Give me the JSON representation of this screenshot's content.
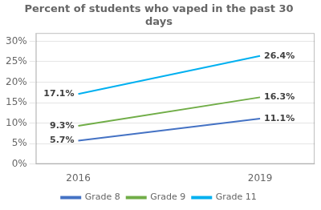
{
  "chart_data": {
    "type": "line",
    "title": "Percent of students who vaped in the past 30\ndays",
    "x": [
      2016,
      2019
    ],
    "series": [
      {
        "name": "Grade 8",
        "color": "#4472C4",
        "values": [
          5.7,
          11.1
        ],
        "value_labels": [
          "5.7%",
          "11.1%"
        ]
      },
      {
        "name": "Grade 9",
        "color": "#70AD47",
        "values": [
          9.3,
          16.3
        ],
        "value_labels": [
          "9.3%",
          "16.3%"
        ]
      },
      {
        "name": "Grade 11",
        "color": "#00B0F0",
        "values": [
          17.1,
          26.4
        ],
        "value_labels": [
          "17.1%",
          "26.4%"
        ]
      }
    ],
    "xlim": [
      2015.3,
      2019.9
    ],
    "xticks": [
      2016,
      2019
    ],
    "ylim": [
      0,
      32
    ],
    "yticks": [
      {
        "value": 0,
        "label": "0%"
      },
      {
        "value": 5,
        "label": "5%"
      },
      {
        "value": 10,
        "label": "10%"
      },
      {
        "value": 15,
        "label": "15%"
      },
      {
        "value": 20,
        "label": "20%"
      },
      {
        "value": 25,
        "label": "25%"
      },
      {
        "value": 30,
        "label": "30%"
      }
    ],
    "grid": true,
    "legend": "bottom",
    "data_labels": true
  }
}
